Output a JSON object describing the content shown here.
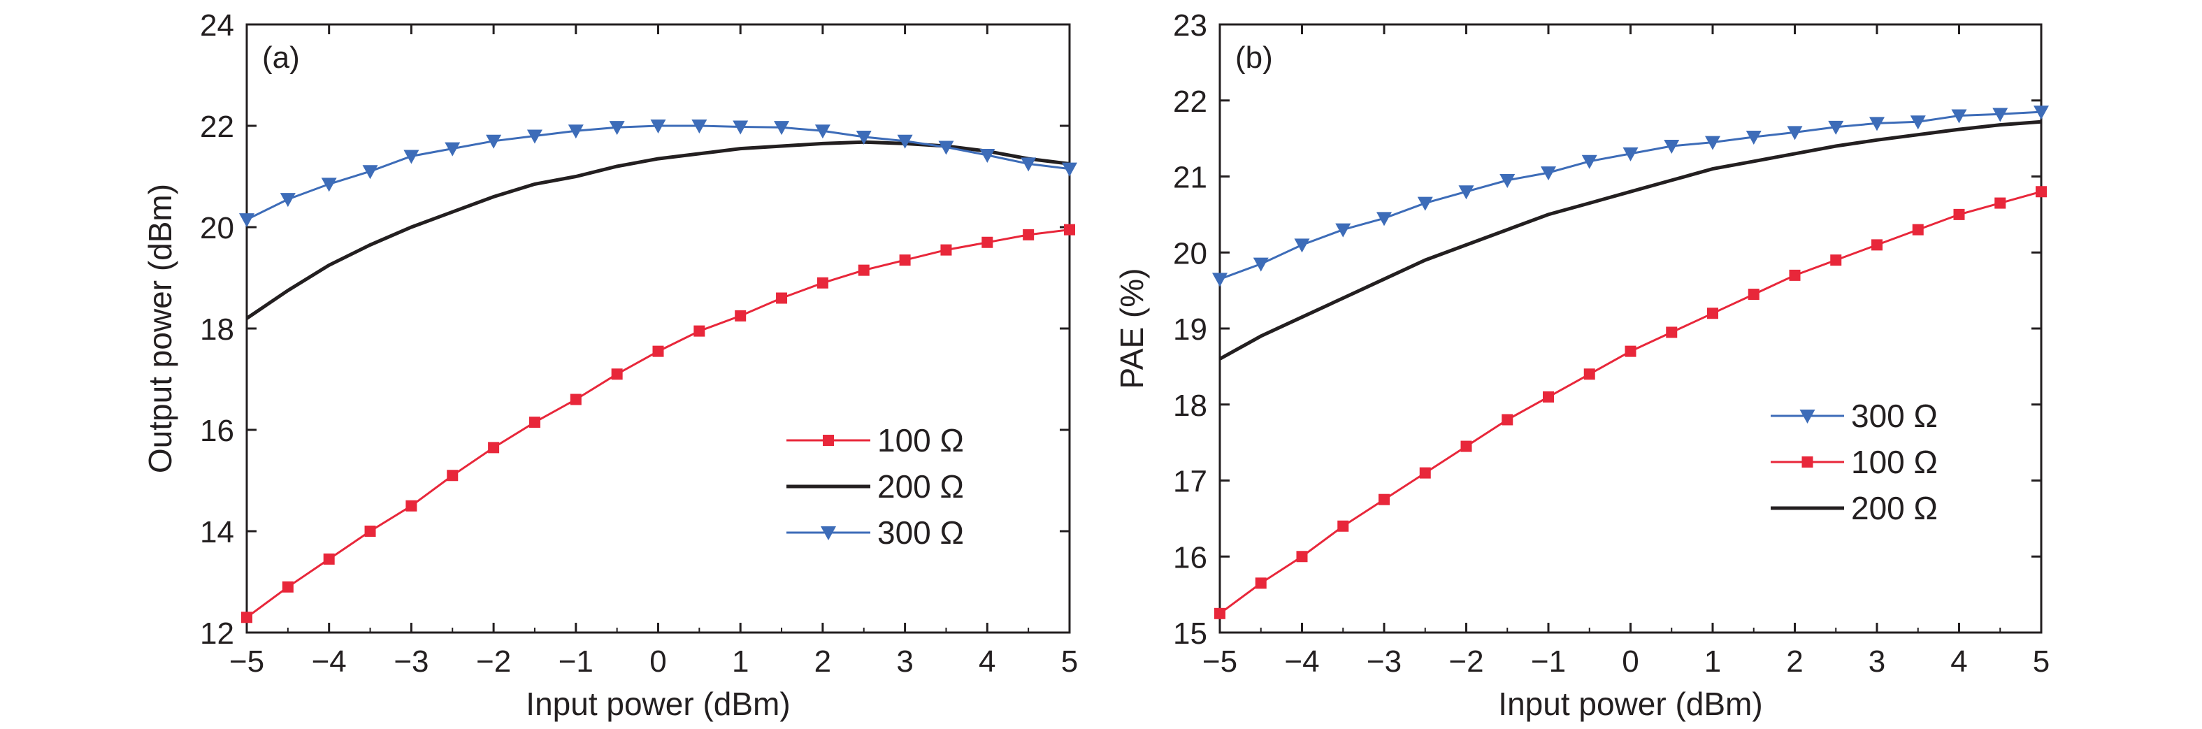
{
  "chart_data": [
    {
      "type": "line",
      "panel_label": "(a)",
      "xlabel": "Input power (dBm)",
      "ylabel": "Output power (dBm)",
      "xlim": [
        -5,
        5
      ],
      "ylim": [
        12,
        24
      ],
      "xticks": [
        -5,
        -4,
        -3,
        -2,
        -1,
        0,
        1,
        2,
        3,
        4,
        5
      ],
      "xtick_labels": [
        "−5",
        "−4",
        "−3",
        "−2",
        "−1",
        "0",
        "1",
        "2",
        "3",
        "4",
        "5"
      ],
      "yticks": [
        12,
        14,
        16,
        18,
        20,
        22,
        24
      ],
      "ytick_labels": [
        "12",
        "14",
        "16",
        "18",
        "20",
        "22",
        "24"
      ],
      "grid": false,
      "legend_position": "lower-right",
      "x": [
        -5,
        -4.5,
        -4,
        -3.5,
        -3,
        -2.5,
        -2,
        -1.5,
        -1,
        -0.5,
        0,
        0.5,
        1,
        1.5,
        2,
        2.5,
        3,
        3.5,
        4,
        4.5,
        5
      ],
      "series": [
        {
          "name": "100 Ω",
          "color": "#e8273a",
          "marker": "square",
          "values": [
            12.3,
            12.9,
            13.45,
            14.0,
            14.5,
            15.1,
            15.65,
            16.15,
            16.6,
            17.1,
            17.55,
            17.95,
            18.25,
            18.6,
            18.9,
            19.15,
            19.35,
            19.55,
            19.7,
            19.85,
            19.95
          ]
        },
        {
          "name": "200 Ω",
          "color": "#231f20",
          "marker": "none",
          "values": [
            18.2,
            18.75,
            19.25,
            19.65,
            20.0,
            20.3,
            20.6,
            20.85,
            21.0,
            21.2,
            21.35,
            21.45,
            21.55,
            21.6,
            21.65,
            21.68,
            21.65,
            21.6,
            21.5,
            21.35,
            21.25
          ]
        },
        {
          "name": "300 Ω",
          "color": "#3d6cb8",
          "marker": "triangle-down",
          "values": [
            20.15,
            20.55,
            20.85,
            21.1,
            21.4,
            21.55,
            21.7,
            21.8,
            21.9,
            21.97,
            22.0,
            22.0,
            21.98,
            21.97,
            21.9,
            21.78,
            21.7,
            21.58,
            21.42,
            21.25,
            21.15
          ]
        }
      ]
    },
    {
      "type": "line",
      "panel_label": "(b)",
      "xlabel": "Input power (dBm)",
      "ylabel": "PAE (%)",
      "xlim": [
        -5,
        5
      ],
      "ylim": [
        15,
        23
      ],
      "xticks": [
        -5,
        -4,
        -3,
        -2,
        -1,
        0,
        1,
        2,
        3,
        4,
        5
      ],
      "xtick_labels": [
        "−5",
        "−4",
        "−3",
        "−2",
        "−1",
        "0",
        "1",
        "2",
        "3",
        "4",
        "5"
      ],
      "yticks": [
        15,
        16,
        17,
        18,
        19,
        20,
        21,
        22,
        23
      ],
      "ytick_labels": [
        "15",
        "16",
        "17",
        "18",
        "19",
        "20",
        "21",
        "22",
        "23"
      ],
      "grid": false,
      "legend_position": "center-right",
      "x": [
        -5,
        -4.5,
        -4,
        -3.5,
        -3,
        -2.5,
        -2,
        -1.5,
        -1,
        -0.5,
        0,
        0.5,
        1,
        1.5,
        2,
        2.5,
        3,
        3.5,
        4,
        4.5,
        5
      ],
      "series": [
        {
          "name": "300 Ω",
          "color": "#3d6cb8",
          "marker": "triangle-down",
          "values": [
            19.65,
            19.85,
            20.1,
            20.3,
            20.45,
            20.65,
            20.8,
            20.95,
            21.05,
            21.2,
            21.3,
            21.4,
            21.45,
            21.52,
            21.58,
            21.65,
            21.7,
            21.72,
            21.8,
            21.82,
            21.85
          ]
        },
        {
          "name": "100 Ω",
          "color": "#e8273a",
          "marker": "square",
          "values": [
            15.25,
            15.65,
            16.0,
            16.4,
            16.75,
            17.1,
            17.45,
            17.8,
            18.1,
            18.4,
            18.7,
            18.95,
            19.2,
            19.45,
            19.7,
            19.9,
            20.1,
            20.3,
            20.5,
            20.65,
            20.8
          ]
        },
        {
          "name": "200 Ω",
          "color": "#231f20",
          "marker": "none",
          "values": [
            18.6,
            18.9,
            19.15,
            19.4,
            19.65,
            19.9,
            20.1,
            20.3,
            20.5,
            20.65,
            20.8,
            20.95,
            21.1,
            21.2,
            21.3,
            21.4,
            21.48,
            21.55,
            21.62,
            21.68,
            21.72
          ]
        }
      ]
    }
  ]
}
